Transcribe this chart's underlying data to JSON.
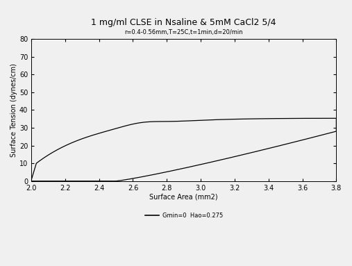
{
  "title": "1 mg/ml CLSE in Nsaline & 5mM CaCl2 5/4",
  "subtitle": "r=0.4-0.56mm,T=25C,t=1min,d=20/min",
  "xlabel": "Surface Area (mm2)",
  "ylabel": "Surface Tension (dynes/cm)",
  "legend_line": "Gmin=0  Hao=0.275",
  "xlim": [
    2.0,
    3.8
  ],
  "ylim": [
    0,
    80
  ],
  "xticks": [
    2.0,
    2.2,
    2.4,
    2.6,
    2.8,
    3.0,
    3.2,
    3.4,
    3.6,
    3.8
  ],
  "yticks": [
    0,
    10,
    20,
    30,
    40,
    50,
    60,
    70,
    80
  ],
  "line_color": "#000000",
  "background_color": "#f0f0f0",
  "title_fontsize": 9,
  "subtitle_fontsize": 6,
  "axis_label_fontsize": 7,
  "tick_fontsize": 7,
  "linewidth": 0.9
}
